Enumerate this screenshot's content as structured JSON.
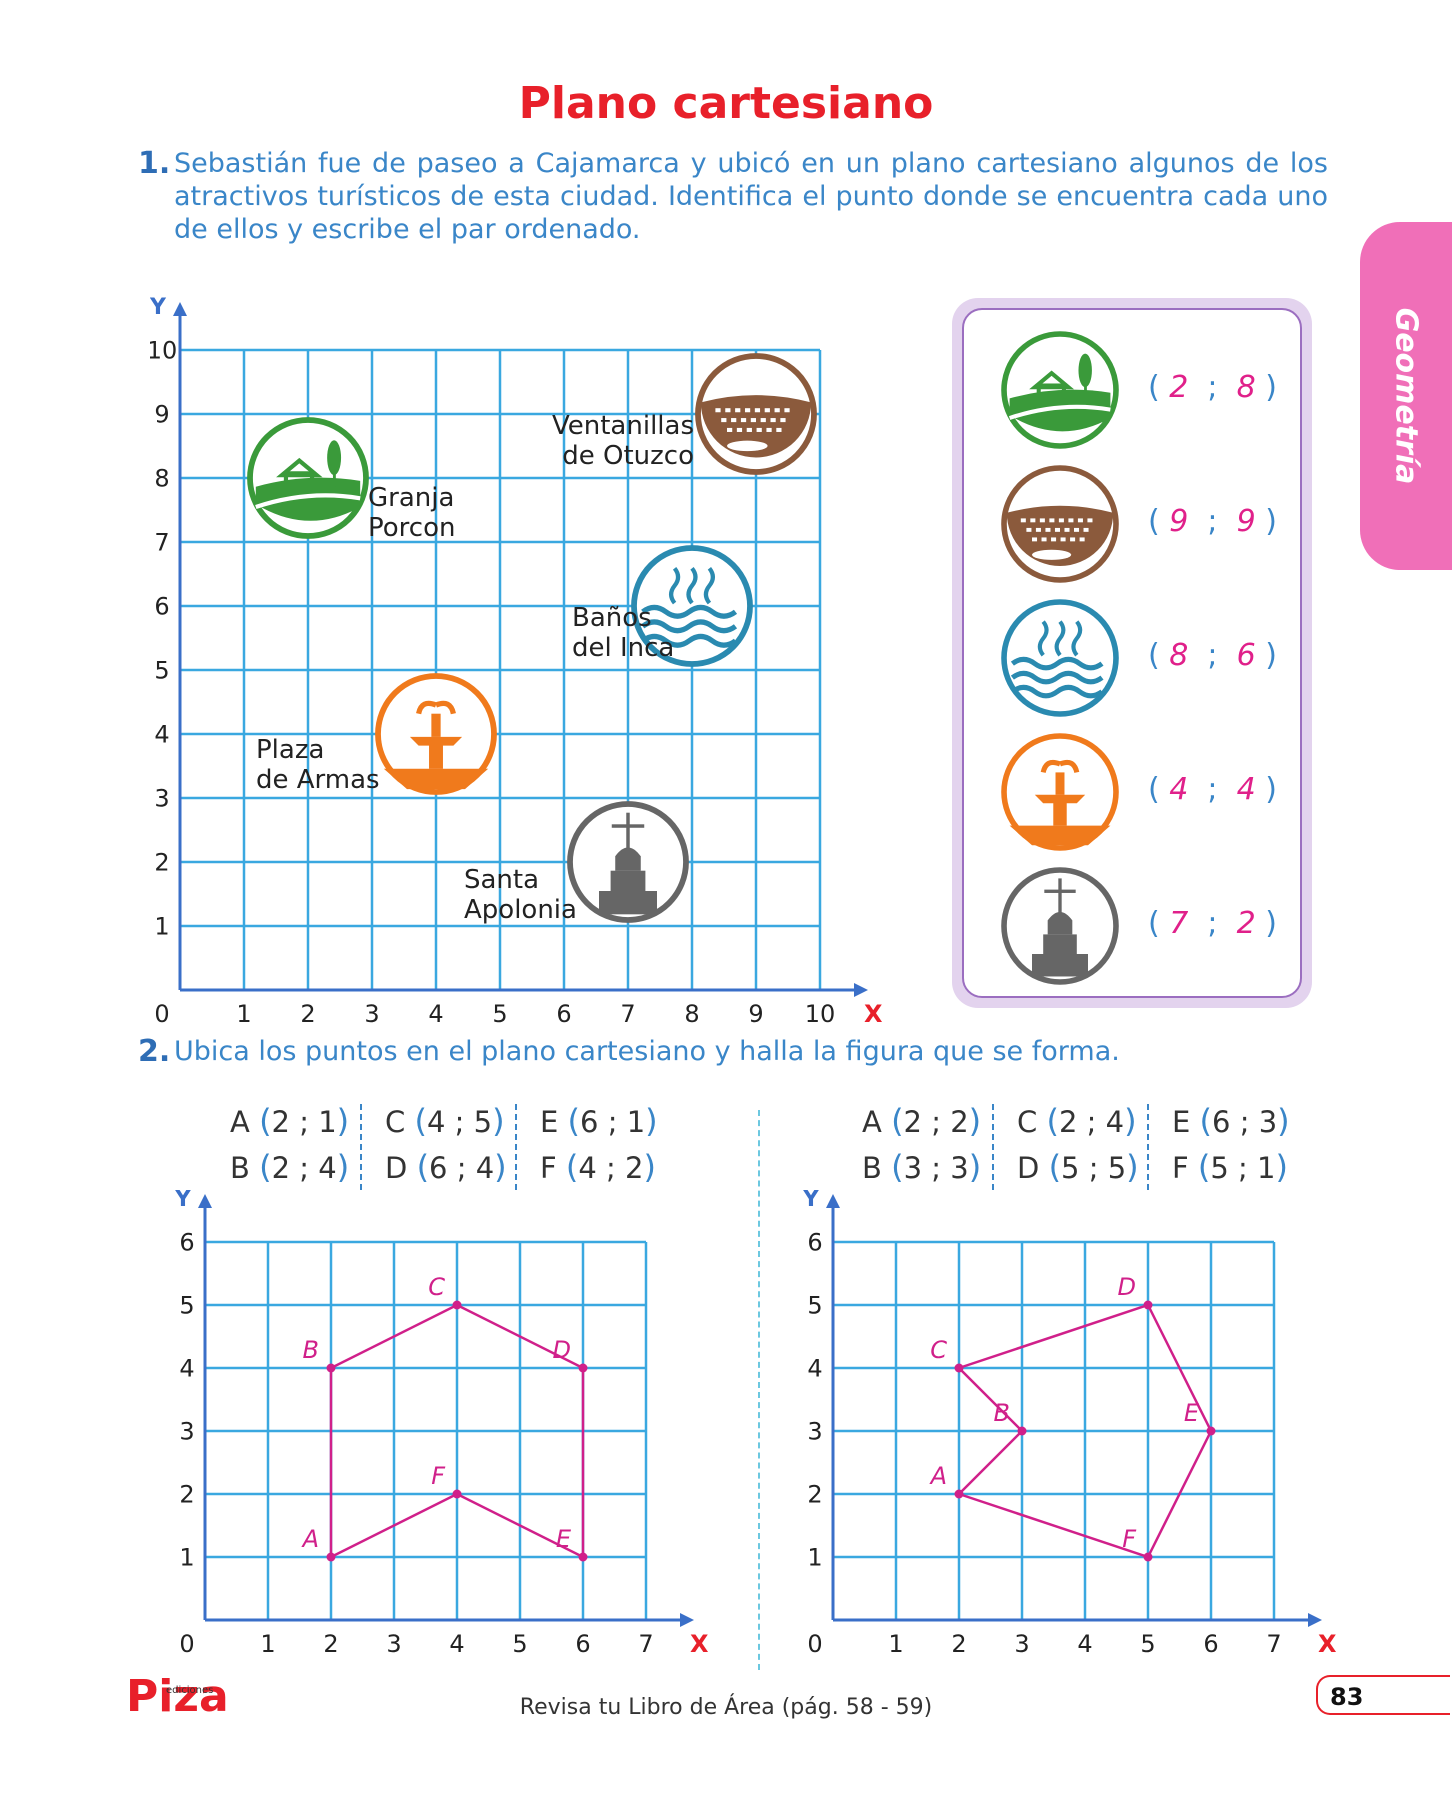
{
  "title": "Plano cartesiano",
  "side_tab": "Geometría",
  "q1": {
    "number": "1.",
    "text": "Sebastián fue de paseo a Cajamarca y ubicó en un plano cartesiano algunos de los atractivos turísticos de esta ciudad. Identifica el punto donde se encuentra cada uno de ellos y escribe el par ordenado.",
    "axis_y": "Y",
    "axis_x": "X",
    "ticks": [
      "0",
      "1",
      "2",
      "3",
      "4",
      "5",
      "6",
      "7",
      "8",
      "9",
      "10"
    ],
    "places": [
      {
        "name_1": "Granja",
        "name_2": "Porcon",
        "x": 2,
        "y": 8,
        "icon": "farm-icon",
        "color": "#3a9a3a"
      },
      {
        "name_1": "Ventanillas",
        "name_2": "de Otuzco",
        "x": 9,
        "y": 9,
        "icon": "ventanillas-icon",
        "color": "#8b5a3c"
      },
      {
        "name_1": "Baños",
        "name_2": "del Inca",
        "x": 8,
        "y": 6,
        "icon": "hot-springs-icon",
        "color": "#2a8ab0"
      },
      {
        "name_1": "Plaza",
        "name_2": "de Armas",
        "x": 4,
        "y": 4,
        "icon": "fountain-icon",
        "color": "#f07a1c"
      },
      {
        "name_1": "Santa",
        "name_2": "Apolonia",
        "x": 7,
        "y": 2,
        "icon": "church-icon",
        "color": "#666666"
      }
    ],
    "answers": [
      {
        "a": "2",
        "b": "8"
      },
      {
        "a": "9",
        "b": "9"
      },
      {
        "a": "8",
        "b": "6"
      },
      {
        "a": "4",
        "b": "4"
      },
      {
        "a": "7",
        "b": "2"
      }
    ]
  },
  "q2": {
    "number": "2.",
    "text": "Ubica los puntos en el plano cartesiano y halla la figura que se forma.",
    "graphs": [
      {
        "points": [
          {
            "label": "A",
            "x": 2,
            "y": 1
          },
          {
            "label": "B",
            "x": 2,
            "y": 4
          },
          {
            "label": "C",
            "x": 4,
            "y": 5
          },
          {
            "label": "D",
            "x": 6,
            "y": 4
          },
          {
            "label": "E",
            "x": 6,
            "y": 1
          },
          {
            "label": "F",
            "x": 4,
            "y": 2
          }
        ],
        "path": [
          "A",
          "B",
          "C",
          "D",
          "E",
          "F",
          "A"
        ]
      },
      {
        "points": [
          {
            "label": "A",
            "x": 2,
            "y": 2
          },
          {
            "label": "B",
            "x": 3,
            "y": 3
          },
          {
            "label": "C",
            "x": 2,
            "y": 4
          },
          {
            "label": "D",
            "x": 5,
            "y": 5
          },
          {
            "label": "E",
            "x": 6,
            "y": 3
          },
          {
            "label": "F",
            "x": 5,
            "y": 1
          }
        ],
        "path": [
          "A",
          "B",
          "C",
          "D",
          "E",
          "F",
          "A"
        ]
      }
    ],
    "axis_y": "Y",
    "axis_x": "X",
    "ticks": [
      "0",
      "1",
      "2",
      "3",
      "4",
      "5",
      "6",
      "7"
    ]
  },
  "footer": "Revisa tu Libro de Área (pág. 58 - 59)",
  "page_number": "83",
  "logo": {
    "text": "Piza",
    "sub": "ediciones"
  },
  "colors": {
    "title": "#e8202a",
    "grid": "#3aa8e0",
    "axis": "#3a6fc8",
    "figure": "#d0208a",
    "text_blue": "#3a86c8"
  }
}
